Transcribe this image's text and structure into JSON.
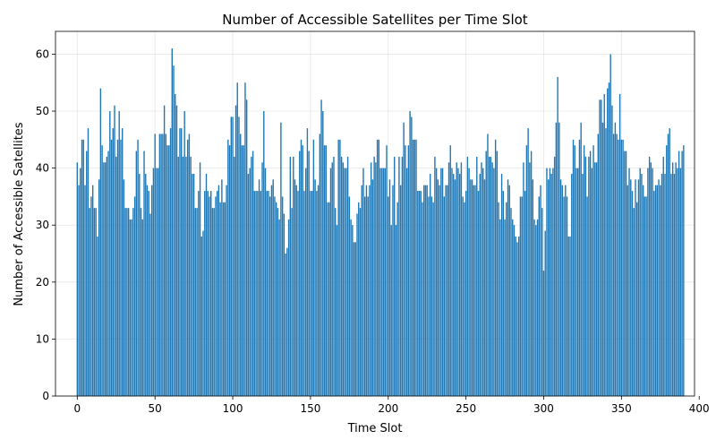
{
  "chart_data": {
    "type": "bar",
    "title": "Number of Accessible Satellites per Time Slot",
    "xlabel": "Time Slot",
    "ylabel": "Number of Accessible Satellites",
    "x_start": 0,
    "xlim": [
      -14,
      397
    ],
    "ylim": [
      0,
      64
    ],
    "xticks": [
      0,
      50,
      100,
      150,
      200,
      250,
      300,
      350,
      400
    ],
    "yticks": [
      0,
      10,
      20,
      30,
      40,
      50,
      60
    ],
    "grid": true,
    "bar_color": "#1f77b4",
    "values": [
      41,
      37,
      40,
      45,
      45,
      37,
      43,
      47,
      33,
      35,
      37,
      33,
      33,
      28,
      38,
      54,
      44,
      41,
      41,
      42,
      43,
      50,
      45,
      47,
      51,
      42,
      45,
      50,
      45,
      47,
      38,
      33,
      33,
      33,
      31,
      31,
      33,
      35,
      43,
      45,
      39,
      33,
      31,
      43,
      39,
      37,
      36,
      32,
      37,
      40,
      46,
      40,
      40,
      46,
      46,
      46,
      51,
      46,
      44,
      44,
      47,
      61,
      58,
      53,
      51,
      42,
      47,
      47,
      42,
      50,
      42,
      45,
      46,
      42,
      39,
      39,
      33,
      33,
      36,
      41,
      28,
      29,
      36,
      39,
      36,
      35,
      36,
      33,
      33,
      35,
      36,
      37,
      34,
      38,
      34,
      34,
      37,
      45,
      44,
      49,
      49,
      42,
      51,
      55,
      49,
      46,
      44,
      44,
      55,
      52,
      39,
      40,
      42,
      43,
      36,
      36,
      36,
      38,
      36,
      41,
      50,
      40,
      36,
      36,
      35,
      37,
      38,
      35,
      34,
      33,
      31,
      48,
      35,
      32,
      25,
      26,
      31,
      42,
      33,
      42,
      38,
      37,
      36,
      43,
      45,
      44,
      36,
      40,
      47,
      43,
      36,
      36,
      45,
      38,
      36,
      37,
      46,
      52,
      50,
      44,
      44,
      34,
      34,
      40,
      41,
      42,
      33,
      30,
      45,
      45,
      42,
      41,
      40,
      40,
      42,
      35,
      31,
      30,
      27,
      27,
      32,
      34,
      33,
      37,
      40,
      35,
      37,
      35,
      37,
      41,
      38,
      42,
      41,
      45,
      45,
      40,
      40,
      40,
      40,
      44,
      35,
      38,
      30,
      37,
      42,
      30,
      34,
      42,
      37,
      42,
      48,
      44,
      40,
      44,
      50,
      49,
      45,
      45,
      45,
      36,
      36,
      36,
      34,
      37,
      37,
      37,
      35,
      39,
      35,
      34,
      42,
      40,
      38,
      37,
      40,
      40,
      35,
      37,
      37,
      41,
      44,
      40,
      39,
      38,
      41,
      40,
      39,
      41,
      35,
      34,
      36,
      42,
      40,
      38,
      38,
      37,
      37,
      42,
      36,
      39,
      41,
      40,
      38,
      43,
      46,
      42,
      42,
      41,
      40,
      45,
      43,
      34,
      31,
      39,
      36,
      31,
      34,
      38,
      37,
      33,
      31,
      30,
      28,
      27,
      28,
      35,
      35,
      41,
      36,
      44,
      47,
      41,
      43,
      38,
      31,
      30,
      31,
      35,
      37,
      33,
      22,
      29,
      40,
      38,
      40,
      39,
      40,
      42,
      48,
      56,
      48,
      38,
      37,
      35,
      37,
      35,
      28,
      28,
      39,
      45,
      44,
      40,
      40,
      45,
      48,
      39,
      44,
      42,
      35,
      42,
      43,
      40,
      44,
      41,
      41,
      46,
      52,
      52,
      48,
      53,
      47,
      54,
      55,
      60,
      51,
      46,
      48,
      46,
      45,
      53,
      45,
      45,
      43,
      43,
      37,
      40,
      38,
      36,
      33,
      38,
      34,
      38,
      40,
      39,
      37,
      35,
      35,
      40,
      42,
      41,
      40,
      36,
      37,
      37,
      38,
      37,
      39,
      42,
      39,
      44,
      46,
      47,
      39,
      41,
      39,
      41,
      40,
      43,
      40,
      43,
      44
    ]
  }
}
